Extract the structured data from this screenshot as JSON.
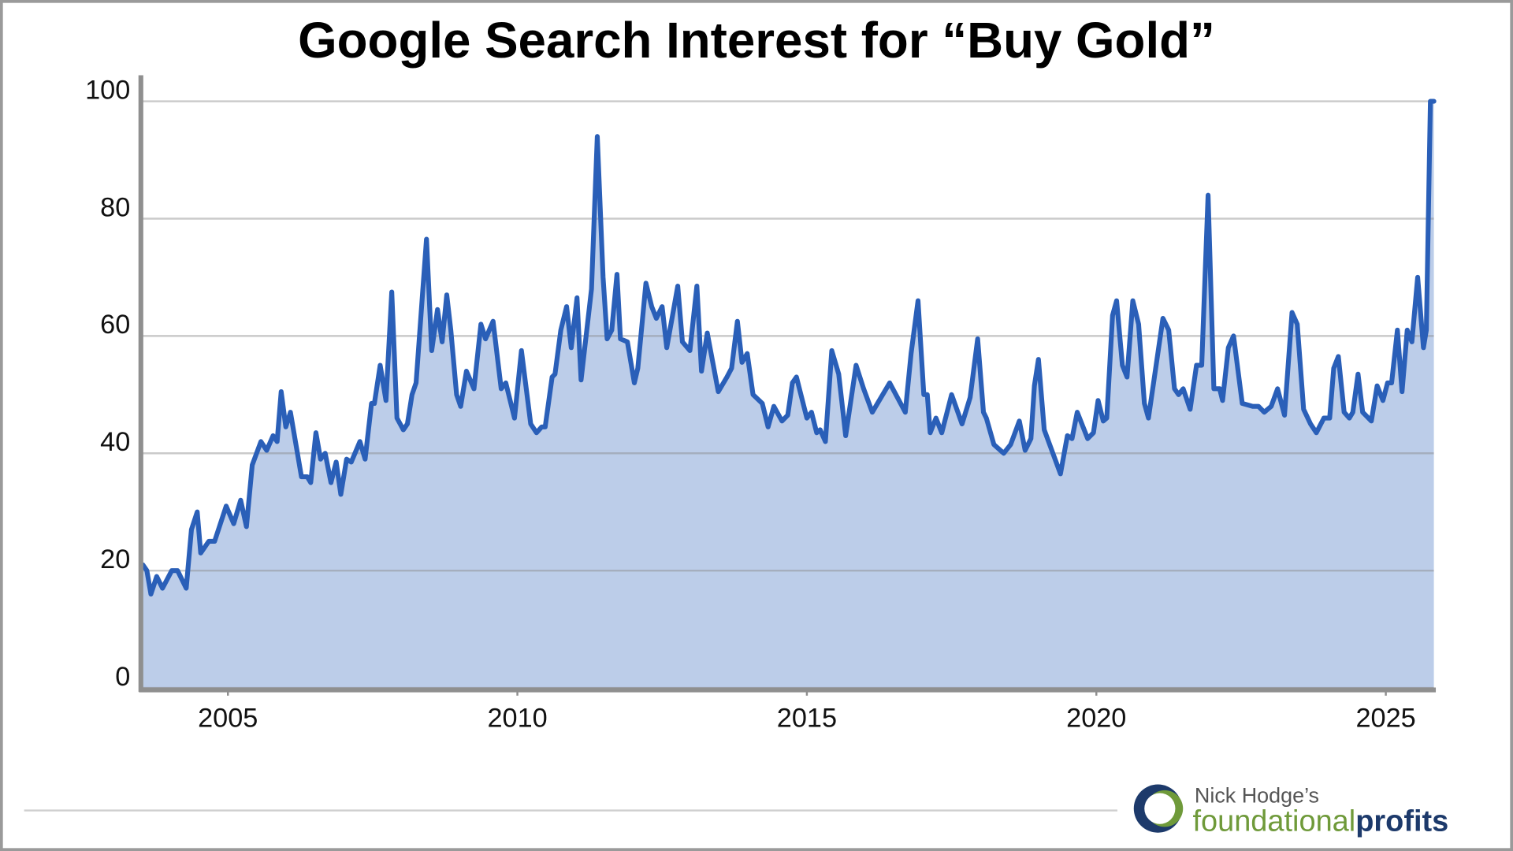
{
  "chart_data": {
    "type": "line",
    "title": "Google Search Interest for “Buy Gold”",
    "x": [
      2003.53,
      2003.6,
      2003.67,
      2003.77,
      2003.87,
      2004.03,
      2004.13,
      2004.28,
      2004.37,
      2004.47,
      2004.53,
      2004.67,
      2004.77,
      2004.97,
      2005.1,
      2005.22,
      2005.32,
      2005.42,
      2005.57,
      2005.67,
      2005.78,
      2005.85,
      2005.92,
      2006.0,
      2006.08,
      2006.27,
      2006.37,
      2006.43,
      2006.52,
      2006.6,
      2006.68,
      2006.78,
      2006.87,
      2006.95,
      2007.05,
      2007.13,
      2007.28,
      2007.37,
      2007.48,
      2007.53,
      2007.63,
      2007.73,
      2007.83,
      2007.92,
      2008.03,
      2008.1,
      2008.18,
      2008.25,
      2008.43,
      2008.52,
      2008.62,
      2008.7,
      2008.78,
      2008.85,
      2008.95,
      2009.02,
      2009.12,
      2009.25,
      2009.37,
      2009.45,
      2009.58,
      2009.72,
      2009.8,
      2009.95,
      2010.07,
      2010.23,
      2010.33,
      2010.42,
      2010.48,
      2010.6,
      2010.65,
      2010.75,
      2010.85,
      2010.93,
      2011.03,
      2011.1,
      2011.28,
      2011.38,
      2011.48,
      2011.55,
      2011.63,
      2011.72,
      2011.78,
      2011.9,
      2012.02,
      2012.08,
      2012.22,
      2012.32,
      2012.4,
      2012.5,
      2012.58,
      2012.68,
      2012.77,
      2012.85,
      2012.98,
      2013.1,
      2013.18,
      2013.28,
      2013.47,
      2013.62,
      2013.7,
      2013.8,
      2013.88,
      2013.97,
      2014.07,
      2014.23,
      2014.33,
      2014.43,
      2014.57,
      2014.67,
      2014.75,
      2014.82,
      2015.0,
      2015.08,
      2015.17,
      2015.23,
      2015.32,
      2015.43,
      2015.55,
      2015.67,
      2015.85,
      2015.98,
      2016.13,
      2016.28,
      2016.43,
      2016.7,
      2016.8,
      2016.92,
      2017.02,
      2017.08,
      2017.13,
      2017.23,
      2017.33,
      2017.5,
      2017.68,
      2017.82,
      2017.95,
      2018.05,
      2018.1,
      2018.23,
      2018.4,
      2018.52,
      2018.67,
      2018.77,
      2018.87,
      2018.93,
      2019.0,
      2019.1,
      2019.38,
      2019.5,
      2019.58,
      2019.67,
      2019.85,
      2019.95,
      2020.03,
      2020.12,
      2020.18,
      2020.28,
      2020.35,
      2020.45,
      2020.53,
      2020.63,
      2020.73,
      2020.83,
      2020.9,
      2021.15,
      2021.25,
      2021.35,
      2021.42,
      2021.5,
      2021.62,
      2021.73,
      2021.82,
      2021.93,
      2022.03,
      2022.13,
      2022.18,
      2022.28,
      2022.37,
      2022.52,
      2022.7,
      2022.8,
      2022.9,
      2023.02,
      2023.13,
      2023.25,
      2023.38,
      2023.47,
      2023.58,
      2023.7,
      2023.8,
      2023.93,
      2024.03,
      2024.1,
      2024.18,
      2024.28,
      2024.37,
      2024.43,
      2024.52,
      2024.6,
      2024.75,
      2024.85,
      2024.95,
      2025.03,
      2025.1,
      2025.2,
      2025.28,
      2025.37,
      2025.45,
      2025.55,
      2025.65,
      2025.7,
      2025.77,
      2025.83
    ],
    "values": [
      21,
      20,
      16,
      19,
      17,
      20,
      20,
      17,
      27,
      30,
      23,
      25,
      25,
      31,
      28,
      32,
      27.5,
      38,
      42,
      40.5,
      43,
      42,
      50.5,
      44.5,
      47,
      36,
      36,
      35,
      43.5,
      39,
      40,
      35,
      38.5,
      33,
      39,
      38.5,
      42,
      39,
      48.5,
      48.5,
      55,
      49,
      67.5,
      46,
      44,
      45,
      50,
      52,
      76.5,
      57.5,
      64.5,
      59,
      67,
      61,
      50,
      48,
      54,
      51,
      62,
      59.5,
      62.5,
      51,
      52,
      46,
      57.5,
      45,
      43.5,
      44.5,
      44.5,
      53,
      53.5,
      61,
      65,
      58,
      66.5,
      52.5,
      68,
      94,
      70,
      59.5,
      61,
      70.5,
      59.5,
      59,
      52,
      54.5,
      69,
      65,
      63,
      65,
      58,
      63.5,
      68.5,
      59,
      57.5,
      68.5,
      54,
      60.5,
      50.5,
      53,
      54.5,
      62.5,
      55.5,
      57,
      50,
      48.5,
      44.5,
      48,
      45.5,
      46.5,
      52,
      53,
      46,
      47,
      43.5,
      44,
      42,
      57.5,
      53.5,
      43,
      55,
      51,
      47,
      49.5,
      52,
      47,
      57,
      66,
      50,
      50,
      43.5,
      46,
      43.5,
      50,
      45,
      49.5,
      59.5,
      47,
      46,
      41.5,
      40,
      41.5,
      45.5,
      40.5,
      42.5,
      51.5,
      56,
      44,
      36.5,
      43,
      42.5,
      47,
      42.5,
      43.5,
      49,
      45.5,
      46,
      63.5,
      66,
      55,
      53,
      66,
      62,
      48.5,
      46,
      63,
      61,
      51,
      50,
      51,
      47.5,
      55,
      55,
      84,
      51,
      51,
      49,
      58,
      60,
      48.5,
      48,
      48,
      47,
      48,
      51,
      46.5,
      64,
      62,
      47.5,
      45,
      43.5,
      46,
      46,
      54.5,
      56.5,
      47,
      46,
      47,
      53.5,
      47,
      45.5,
      51.5,
      49,
      52,
      52,
      61,
      50.5,
      61,
      59,
      70,
      58,
      61,
      100,
      100
    ],
    "color": "#2a5fb8",
    "fill_color": "#bccde9",
    "xlim": [
      2003.53,
      2025.83
    ],
    "xticks": [
      2005,
      2010,
      2015,
      2020,
      2025
    ],
    "ylim": [
      0,
      100
    ],
    "yticks": [
      0,
      20,
      40,
      60,
      80,
      100
    ],
    "grid": true
  },
  "logo": {
    "tagline": "Nick Hodge’s",
    "name_part1": "foundational",
    "name_part2": "profits"
  }
}
